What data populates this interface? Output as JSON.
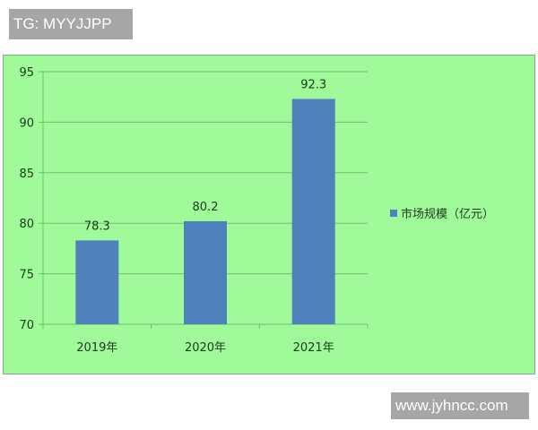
{
  "watermarks": {
    "top": "TG: MYYJJPP",
    "bottom": "www.jyhncc.com"
  },
  "chart_data": {
    "type": "bar",
    "categories": [
      "2019年",
      "2020年",
      "2021年"
    ],
    "series": [
      {
        "name": "市场规模（亿元）",
        "values": [
          78.3,
          80.2,
          92.3
        ]
      }
    ],
    "data_labels": [
      "78.3",
      "80.2",
      "92.3"
    ],
    "ylim": [
      70,
      95
    ],
    "yticks": [
      70,
      75,
      80,
      85,
      90,
      95
    ],
    "grid": true,
    "legend": "right",
    "colors": {
      "bar": "#4f81bd",
      "background": "#a0fa9a",
      "grid": "#6fbf6f",
      "text": "#1a3a1a"
    }
  }
}
